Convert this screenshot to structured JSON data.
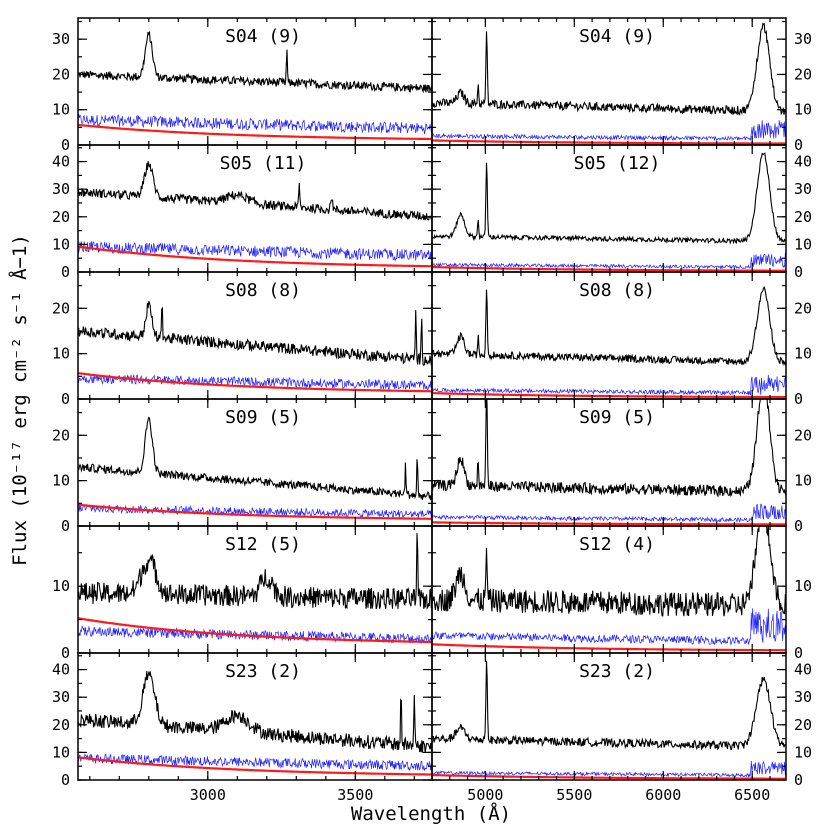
{
  "chart_data": {
    "type": "line",
    "xlabel": "Wavelength (Å)",
    "ylabel": "Flux (10⁻¹⁷ erg cm⁻² s⁻¹ Å−1)",
    "series_colors": {
      "spectrum": "#000000",
      "error": "#1f1fff",
      "host": "#ff1a1a"
    },
    "columns": [
      {
        "xlim": [
          2560,
          3760
        ],
        "xticks": [
          3000,
          3500
        ],
        "xticklabels": [
          "3000",
          "3500"
        ],
        "minor_step": 100
      },
      {
        "xlim": [
          4700,
          6690
        ],
        "xticks": [
          5000,
          5500,
          6000,
          6500
        ],
        "xticklabels": [
          "5000",
          "5500",
          "6000",
          "6500"
        ],
        "minor_step": 100
      }
    ],
    "rows": [
      {
        "ylim": [
          0,
          36
        ],
        "yticks": [
          0,
          10,
          20,
          30
        ],
        "panels": [
          {
            "label": "S04 (9)",
            "cont": [
              20,
              16
            ],
            "err": 5.5,
            "host": 4.5,
            "noise": 1.2,
            "lines": [
              [
                2800,
                12,
                12
              ],
              [
                3268,
                10,
                1.5
              ]
            ]
          },
          {
            "label": "S04 (9)",
            "cont": [
              12,
              9.5
            ],
            "err": 2,
            "host": 1,
            "noise": 1.2,
            "lines": [
              [
                4861,
                3,
                20
              ],
              [
                4959,
                6,
                3
              ],
              [
                5007,
                20,
                4
              ],
              [
                6563,
                24,
                35
              ]
            ]
          }
        ]
      },
      {
        "ylim": [
          0,
          46
        ],
        "yticks": [
          0,
          10,
          20,
          30,
          40
        ],
        "panels": [
          {
            "label": "S05 (11)",
            "cont": [
              29,
              20
            ],
            "err": 7,
            "host": 8,
            "noise": 1.6,
            "lines": [
              [
                2800,
                12,
                14
              ],
              [
                3100,
                3,
                35
              ],
              [
                3310,
                8,
                2
              ],
              [
                3420,
                5,
                3
              ]
            ]
          },
          {
            "label": "S05 (12)",
            "cont": [
              13,
              11
            ],
            "err": 2,
            "host": 1.5,
            "noise": 0.8,
            "lines": [
              [
                4861,
                8,
                22
              ],
              [
                4959,
                7,
                3
              ],
              [
                5007,
                28,
                4
              ],
              [
                6563,
                32,
                35
              ]
            ]
          }
        ]
      },
      {
        "ylim": [
          0,
          28
        ],
        "yticks": [
          0,
          10,
          20
        ],
        "panels": [
          {
            "label": "S08 (8)",
            "cont": [
              15,
              8.5
            ],
            "err": 3.5,
            "host": 4.5,
            "noise": 1.2,
            "lines": [
              [
                2800,
                7,
                10
              ],
              [
                2845,
                10,
                1.5
              ],
              [
                3705,
                12,
                1.5
              ],
              [
                3725,
                10,
                1.5
              ]
            ]
          },
          {
            "label": "S08 (8)",
            "cont": [
              10,
              8
            ],
            "err": 1.5,
            "host": 1,
            "noise": 0.8,
            "lines": [
              [
                4861,
                4,
                20
              ],
              [
                4959,
                4,
                3
              ],
              [
                5007,
                15,
                4
              ],
              [
                6563,
                16,
                35
              ]
            ]
          }
        ]
      },
      {
        "ylim": [
          0,
          28
        ],
        "yticks": [
          0,
          10,
          20
        ],
        "panels": [
          {
            "label": "S09 (5)",
            "cont": [
              13,
              6.5
            ],
            "err": 3,
            "host": 3.5,
            "noise": 0.9,
            "lines": [
              [
                2800,
                12,
                12
              ],
              [
                3670,
                7,
                1.5
              ],
              [
                3710,
                9,
                1.5
              ]
            ]
          },
          {
            "label": "S09 (5)",
            "cont": [
              9,
              7.5
            ],
            "err": 1.5,
            "host": 0.5,
            "noise": 1.2,
            "lines": [
              [
                4861,
                6,
                20
              ],
              [
                4959,
                6,
                3
              ],
              [
                5007,
                22,
                4
              ],
              [
                6563,
                24,
                35
              ]
            ]
          }
        ]
      },
      {
        "ylim": [
          0,
          19
        ],
        "yticks": [
          0,
          10
        ],
        "panels": [
          {
            "label": "S12 (5)",
            "cont": [
              9,
              8
            ],
            "err": 2.5,
            "host": 4,
            "noise": 1.6,
            "lines": [
              [
                2800,
                5,
                25
              ],
              [
                3200,
                3,
                20
              ],
              [
                3710,
                10,
                1.5
              ]
            ]
          },
          {
            "label": "S12 (4)",
            "cont": [
              8,
              7
            ],
            "err": 2,
            "host": 1,
            "noise": 1.8,
            "lines": [
              [
                4861,
                4,
                25
              ],
              [
                5007,
                7,
                4
              ],
              [
                6563,
                14,
                40
              ]
            ]
          }
        ]
      },
      {
        "ylim": [
          0,
          46
        ],
        "yticks": [
          0,
          10,
          20,
          30,
          40
        ],
        "panels": [
          {
            "label": "S23 (2)",
            "cont": [
              22,
              12
            ],
            "err": 6,
            "host": 7,
            "noise": 2.5,
            "lines": [
              [
                2800,
                18,
                20
              ],
              [
                3100,
                6,
                40
              ],
              [
                3655,
                22,
                1.5
              ],
              [
                3700,
                20,
                1.5
              ]
            ]
          },
          {
            "label": "S23 (2)",
            "cont": [
              15,
              12
            ],
            "err": 2,
            "host": 1.5,
            "noise": 1.5,
            "lines": [
              [
                4861,
                4,
                25
              ],
              [
                5007,
                30,
                4
              ],
              [
                6563,
                24,
                40
              ]
            ]
          }
        ]
      }
    ]
  }
}
